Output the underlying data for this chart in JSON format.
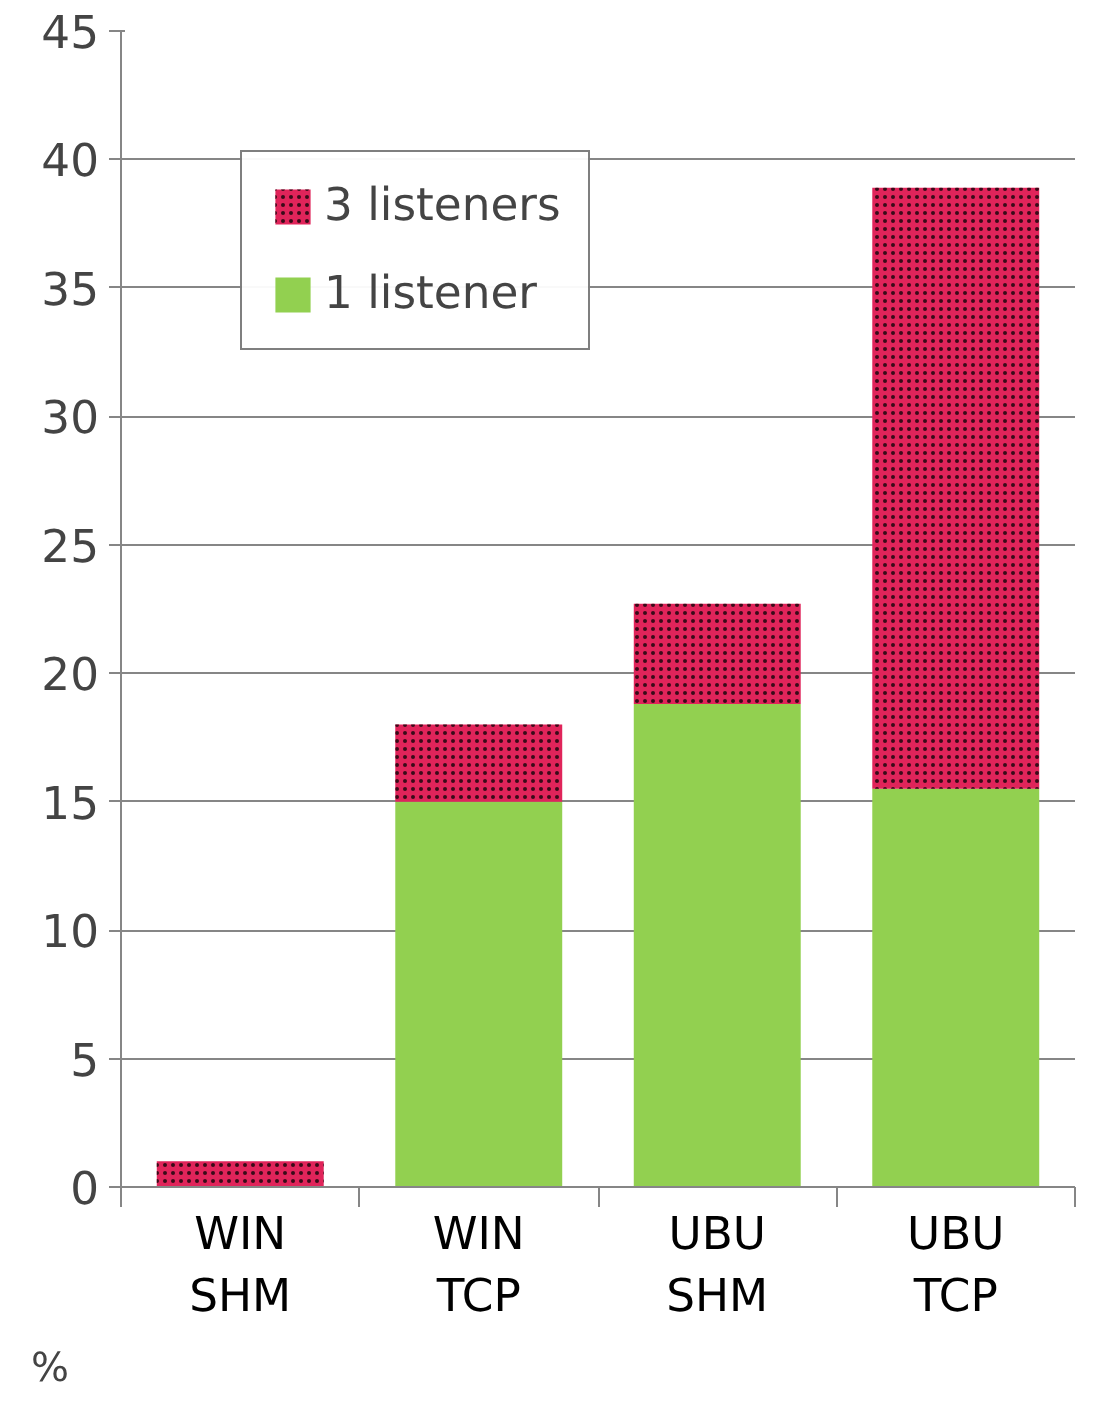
{
  "chart_data": {
    "type": "bar",
    "stacked": true,
    "ylabel": "%",
    "categories": [
      "WIN\nSHM",
      "WIN\nTCP",
      "UBU\nSHM",
      "UBU\nTCP"
    ],
    "series": [
      {
        "name": "1 listener",
        "color": "#92d050",
        "values": [
          0,
          15.0,
          18.8,
          15.5
        ]
      },
      {
        "name": "3 listeners",
        "color": "#e0245a",
        "values": [
          1.0,
          3.0,
          3.9,
          23.4
        ]
      }
    ],
    "ylim": [
      0,
      45
    ],
    "yticks": [
      0,
      5,
      10,
      15,
      20,
      25,
      30,
      35,
      40,
      45
    ],
    "grid": "y",
    "legend": "top left"
  }
}
